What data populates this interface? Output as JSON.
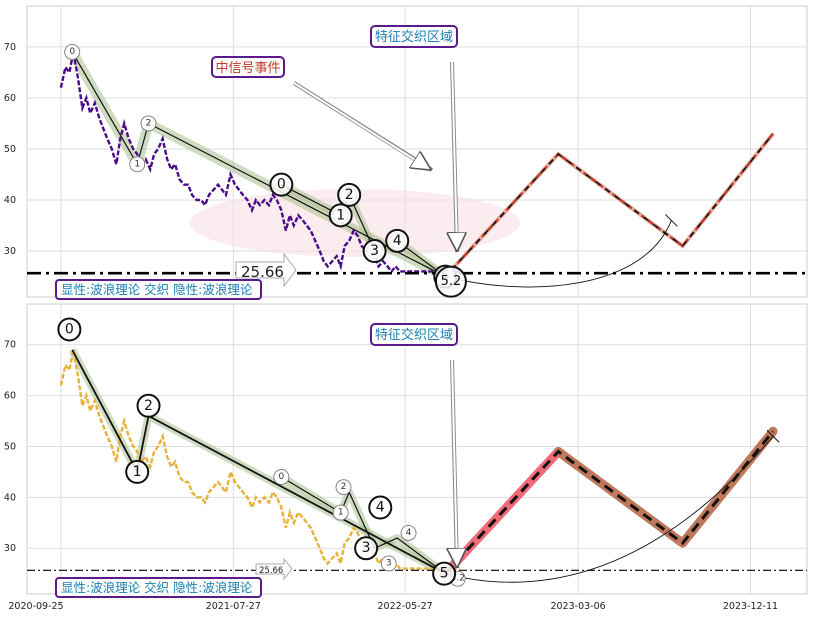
{
  "chart_data": [
    {
      "type": "line",
      "title": "",
      "ylim": [
        21,
        78
      ],
      "yticks": [
        30,
        40,
        50,
        60,
        70
      ],
      "grid": true,
      "dates": [
        "2020-09-25",
        "2021-07-27",
        "2022-05-27",
        "2023-03-06",
        "2023-12-11"
      ],
      "xticks": [
        0,
        305,
        609,
        915,
        1220
      ],
      "xlim": [
        -60,
        1320
      ],
      "price_series": {
        "name": "",
        "color": "#4b0c8a",
        "x": [
          0,
          8,
          15,
          22,
          30,
          38,
          45,
          52,
          60,
          68,
          75,
          82,
          90,
          98,
          105,
          112,
          120,
          128,
          135,
          142,
          150,
          158,
          165,
          172,
          180,
          188,
          195,
          202,
          210,
          218,
          225,
          232,
          240,
          248,
          255,
          262,
          270,
          278,
          285,
          292,
          300,
          308,
          315,
          322,
          330,
          338,
          345,
          352,
          360,
          368,
          375,
          382,
          390,
          398,
          405,
          412,
          420,
          428,
          435,
          442,
          450,
          458,
          465,
          472,
          480,
          488,
          495,
          502,
          510,
          518,
          525,
          532,
          540,
          548,
          555,
          562,
          570,
          578,
          585,
          592,
          600,
          608,
          615,
          622,
          630,
          638,
          645,
          652,
          660,
          668,
          675,
          682,
          690,
          698,
          705
        ],
        "y": [
          62,
          66,
          65,
          69,
          64,
          58,
          60,
          57,
          59,
          56,
          54,
          52,
          50,
          47,
          52,
          55,
          52,
          50,
          49,
          47,
          48,
          46,
          49,
          50,
          52,
          48,
          46,
          47,
          44,
          43,
          43,
          41,
          40,
          40,
          39,
          41,
          42,
          43,
          42,
          41,
          45,
          43,
          42,
          41,
          40,
          38,
          40,
          39,
          40,
          39,
          41,
          40,
          38,
          34,
          37,
          35,
          37,
          36,
          35,
          34,
          32,
          30,
          28,
          27,
          28,
          29,
          27,
          31,
          32,
          34,
          33,
          31,
          30,
          30,
          29,
          27,
          28,
          27,
          26,
          27,
          26,
          26,
          26,
          26,
          26,
          26,
          26,
          26,
          26,
          26,
          26,
          26,
          26,
          26,
          26
        ]
      },
      "wave_lines": [
        {
          "x": [
            20,
            135,
            155,
            680
          ],
          "y": [
            69,
            47,
            55,
            25
          ]
        },
        {
          "x": [
            390,
            495,
            510,
            555,
            595,
            680
          ],
          "y": [
            43,
            37,
            41,
            30,
            32,
            25
          ]
        }
      ],
      "minor_labels": [
        {
          "text": "0",
          "x": 20,
          "y": 69
        },
        {
          "text": "1",
          "x": 135,
          "y": 47
        },
        {
          "text": "2",
          "x": 155,
          "y": 55
        },
        {
          "text": "3",
          "x": 495,
          "y": 37
        },
        {
          "text": "4",
          "x": 510,
          "y": 41
        },
        {
          "text": "3",
          "x": 555,
          "y": 30
        },
        {
          "text": "4",
          "x": 595,
          "y": 32
        },
        {
          "text": "5",
          "x": 680,
          "y": 25
        },
        {
          "text": "5.2",
          "x": 690,
          "y": 24
        }
      ],
      "major_labels": [
        {
          "text": "0",
          "x": 390,
          "y": 43
        },
        {
          "text": "1",
          "x": 495,
          "y": 37
        },
        {
          "text": "2",
          "x": 510,
          "y": 41
        },
        {
          "text": "3",
          "x": 555,
          "y": 30
        },
        {
          "text": "4",
          "x": 595,
          "y": 32
        },
        {
          "text": "5",
          "x": 680,
          "y": 25
        },
        {
          "text": "5.2",
          "x": 690,
          "y": 24
        }
      ],
      "projection": {
        "x": [
          680,
          880,
          1100,
          1260
        ],
        "y": [
          25,
          49,
          31,
          53
        ]
      },
      "support_level": 25.66,
      "support_label": "25.66",
      "callouts": {
        "medium_signal": "中信号事件",
        "feature_zone": "特征交织区域"
      },
      "legend_text": "显性:波浪理论 交织 隐性:波浪理论"
    },
    {
      "type": "line",
      "title": "",
      "ylim": [
        21,
        78
      ],
      "yticks": [
        30,
        40,
        50,
        60,
        70
      ],
      "grid": true,
      "dates": [
        "2020-09-25",
        "2021-07-27",
        "2022-05-27",
        "2023-03-06",
        "2023-12-11"
      ],
      "xticks": [
        0,
        305,
        609,
        915,
        1220
      ],
      "xlim": [
        -60,
        1320
      ],
      "price_series": {
        "name": "",
        "color": "#e8b23a",
        "x": [
          0,
          8,
          15,
          22,
          30,
          38,
          45,
          52,
          60,
          68,
          75,
          82,
          90,
          98,
          105,
          112,
          120,
          128,
          135,
          142,
          150,
          158,
          165,
          172,
          180,
          188,
          195,
          202,
          210,
          218,
          225,
          232,
          240,
          248,
          255,
          262,
          270,
          278,
          285,
          292,
          300,
          308,
          315,
          322,
          330,
          338,
          345,
          352,
          360,
          368,
          375,
          382,
          390,
          398,
          405,
          412,
          420,
          428,
          435,
          442,
          450,
          458,
          465,
          472,
          480,
          488,
          495,
          502,
          510,
          518,
          525,
          532,
          540,
          548,
          555,
          562,
          570,
          578,
          585,
          592,
          600,
          608,
          615,
          622,
          630,
          638,
          645,
          652,
          660,
          668,
          675,
          682,
          690,
          698,
          705
        ],
        "y": [
          62,
          66,
          65,
          69,
          64,
          58,
          60,
          57,
          59,
          56,
          54,
          52,
          50,
          47,
          52,
          55,
          52,
          50,
          49,
          47,
          48,
          46,
          49,
          50,
          52,
          48,
          46,
          47,
          44,
          43,
          43,
          41,
          40,
          40,
          39,
          41,
          42,
          43,
          42,
          41,
          45,
          43,
          42,
          41,
          40,
          38,
          40,
          39,
          40,
          39,
          41,
          40,
          38,
          34,
          37,
          35,
          37,
          36,
          35,
          34,
          32,
          30,
          28,
          27,
          28,
          29,
          27,
          31,
          32,
          34,
          33,
          31,
          30,
          30,
          29,
          27,
          28,
          27,
          26,
          27,
          26,
          26,
          26,
          26,
          26,
          26,
          26,
          26,
          26,
          26,
          26,
          26,
          26,
          26,
          26
        ]
      },
      "wave_lines": [
        {
          "x": [
            20,
            135,
            155,
            680
          ],
          "y": [
            69,
            45,
            56,
            25
          ]
        },
        {
          "x": [
            390,
            495,
            510,
            555,
            595,
            680
          ],
          "y": [
            44,
            37,
            41,
            30,
            32,
            25
          ]
        }
      ],
      "major_labels": [
        {
          "text": "0",
          "x": 15,
          "y": 73
        },
        {
          "text": "1",
          "x": 135,
          "y": 45
        },
        {
          "text": "2",
          "x": 155,
          "y": 58
        },
        {
          "text": "3",
          "x": 540,
          "y": 30
        },
        {
          "text": "4",
          "x": 565,
          "y": 38
        },
        {
          "text": "5",
          "x": 678,
          "y": 25
        }
      ],
      "minor_labels": [
        {
          "text": "0",
          "x": 390,
          "y": 44
        },
        {
          "text": "1",
          "x": 495,
          "y": 37
        },
        {
          "text": "2",
          "x": 500,
          "y": 42
        },
        {
          "text": "3",
          "x": 580,
          "y": 27
        },
        {
          "text": "4",
          "x": 615,
          "y": 33
        },
        {
          "text": "5.2",
          "x": 702,
          "y": 24
        }
      ],
      "projection": {
        "x": [
          680,
          880,
          1100,
          1260
        ],
        "y": [
          25,
          49,
          31,
          53
        ]
      },
      "support_level": 25.66,
      "support_label": "25.66",
      "callouts": {
        "feature_zone": "特征交织区域"
      },
      "legend_text": "显性:波浪理论 交织 隐性:波浪理论"
    }
  ]
}
